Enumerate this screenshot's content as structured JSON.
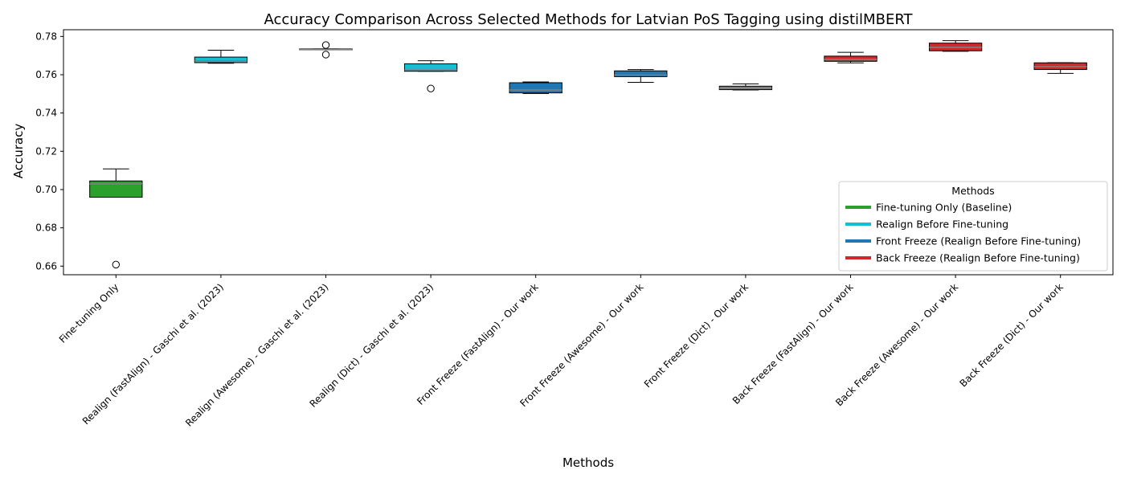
{
  "chart_data": {
    "type": "box",
    "title": "Accuracy Comparison Across Selected Methods for Latvian PoS Tagging using distilMBERT",
    "xlabel": "Methods",
    "ylabel": "Accuracy",
    "ylim": [
      0.6555,
      0.7835
    ],
    "yticks": [
      "0.66",
      "0.68",
      "0.70",
      "0.72",
      "0.74",
      "0.76",
      "0.78"
    ],
    "ytick_values": [
      0.66,
      0.68,
      0.7,
      0.72,
      0.74,
      0.76,
      0.78
    ],
    "grid": false,
    "legend": {
      "title": "Methods",
      "placement": "lower-right",
      "entries": [
        {
          "label": "Fine-tuning Only (Baseline)",
          "color": "#2ca02c"
        },
        {
          "label": "Realign Before Fine-tuning",
          "color": "#17becf"
        },
        {
          "label": "Front Freeze (Realign Before Fine-tuning)",
          "color": "#1f77b4"
        },
        {
          "label": "Back Freeze (Realign Before Fine-tuning)",
          "color": "#d62728"
        }
      ]
    },
    "categories": [
      "Fine-tuning Only",
      "Realign (FastAlign) - Gaschi et al. (2023)",
      "Realign (Awesome) - Gaschi et al. (2023)",
      "Realign (Dict) - Gaschi et al. (2023)",
      "Front Freeze (FastAlign) - Our work",
      "Front Freeze (Awesome) - Our work",
      "Front Freeze (Dict) - Our work",
      "Back Freeze (FastAlign) - Our work",
      "Back Freeze (Awesome) - Our work",
      "Back Freeze (Dict) - Our work"
    ],
    "boxes": [
      {
        "whislo": 0.696,
        "q1": 0.696,
        "med": 0.703,
        "q3": 0.7045,
        "whishi": 0.7108,
        "fliers": [
          0.6608
        ],
        "color": "#2ca02c"
      },
      {
        "whislo": 0.766,
        "q1": 0.7663,
        "med": 0.7672,
        "q3": 0.7692,
        "whishi": 0.7728,
        "fliers": [],
        "color": "#17becf"
      },
      {
        "whislo": 0.773,
        "q1": 0.773,
        "med": 0.7732,
        "q3": 0.7735,
        "whishi": 0.7735,
        "fliers": [
          0.7755,
          0.7705
        ],
        "color": "#17becf"
      },
      {
        "whislo": 0.7618,
        "q1": 0.7618,
        "med": 0.7625,
        "q3": 0.7657,
        "whishi": 0.7673,
        "fliers": [
          0.7528
        ],
        "color": "#17becf"
      },
      {
        "whislo": 0.7502,
        "q1": 0.7505,
        "med": 0.752,
        "q3": 0.7558,
        "whishi": 0.7562,
        "fliers": [],
        "color": "#1f77b4"
      },
      {
        "whislo": 0.756,
        "q1": 0.759,
        "med": 0.7598,
        "q3": 0.762,
        "whishi": 0.7627,
        "fliers": [],
        "color": "#1f77b4"
      },
      {
        "whislo": 0.752,
        "q1": 0.7522,
        "med": 0.753,
        "q3": 0.754,
        "whishi": 0.7552,
        "fliers": [],
        "color": "#7f7f7f"
      },
      {
        "whislo": 0.7662,
        "q1": 0.767,
        "med": 0.768,
        "q3": 0.7697,
        "whishi": 0.7717,
        "fliers": [],
        "color": "#d62728"
      },
      {
        "whislo": 0.7722,
        "q1": 0.7725,
        "med": 0.7743,
        "q3": 0.7765,
        "whishi": 0.7778,
        "fliers": [],
        "color": "#d62728"
      },
      {
        "whislo": 0.7607,
        "q1": 0.7627,
        "med": 0.7642,
        "q3": 0.7662,
        "whishi": 0.7663,
        "fliers": [],
        "color": "#d62728"
      }
    ]
  }
}
